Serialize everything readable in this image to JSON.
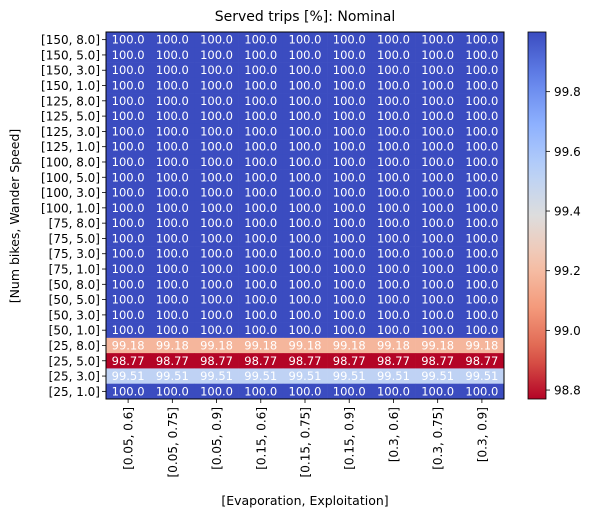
{
  "chart_data": {
    "type": "heatmap",
    "title": "Served trips [%]: Nominal",
    "xlabel": "[Evaporation, Exploitation]",
    "ylabel": "[Num bikes, Wander Speed]",
    "x_categories": [
      "[0.05, 0.6]",
      "[0.05, 0.75]",
      "[0.05, 0.9]",
      "[0.15, 0.6]",
      "[0.15, 0.75]",
      "[0.15, 0.9]",
      "[0.3, 0.6]",
      "[0.3, 0.75]",
      "[0.3, 0.9]"
    ],
    "y_categories": [
      "[150, 8.0]",
      "[150, 5.0]",
      "[150, 3.0]",
      "[150, 1.0]",
      "[125, 8.0]",
      "[125, 5.0]",
      "[125, 3.0]",
      "[125, 1.0]",
      "[100, 8.0]",
      "[100, 5.0]",
      "[100, 3.0]",
      "[100, 1.0]",
      "[75, 8.0]",
      "[75, 5.0]",
      "[75, 3.0]",
      "[75, 1.0]",
      "[50, 8.0]",
      "[50, 5.0]",
      "[50, 3.0]",
      "[50, 1.0]",
      "[25, 8.0]",
      "[25, 5.0]",
      "[25, 3.0]",
      "[25, 1.0]"
    ],
    "row_values": [
      100.0,
      100.0,
      100.0,
      100.0,
      100.0,
      100.0,
      100.0,
      100.0,
      100.0,
      100.0,
      100.0,
      100.0,
      100.0,
      100.0,
      100.0,
      100.0,
      100.0,
      100.0,
      100.0,
      100.0,
      99.18,
      98.77,
      99.51,
      100.0
    ],
    "row_labels": [
      "100.0",
      "100.0",
      "100.0",
      "100.0",
      "100.0",
      "100.0",
      "100.0",
      "100.0",
      "100.0",
      "100.0",
      "100.0",
      "100.0",
      "100.0",
      "100.0",
      "100.0",
      "100.0",
      "100.0",
      "100.0",
      "100.0",
      "100.0",
      "99.18",
      "98.77",
      "99.51",
      "100.0"
    ],
    "colormap": "coolwarm_r",
    "vmin": 98.77,
    "vmax": 100.0,
    "colorbar_ticks": [
      98.8,
      99.0,
      99.2,
      99.4,
      99.6,
      99.8
    ],
    "colorbar_tick_labels": [
      "98.8",
      "99.0",
      "99.2",
      "99.4",
      "99.6",
      "99.8"
    ]
  }
}
